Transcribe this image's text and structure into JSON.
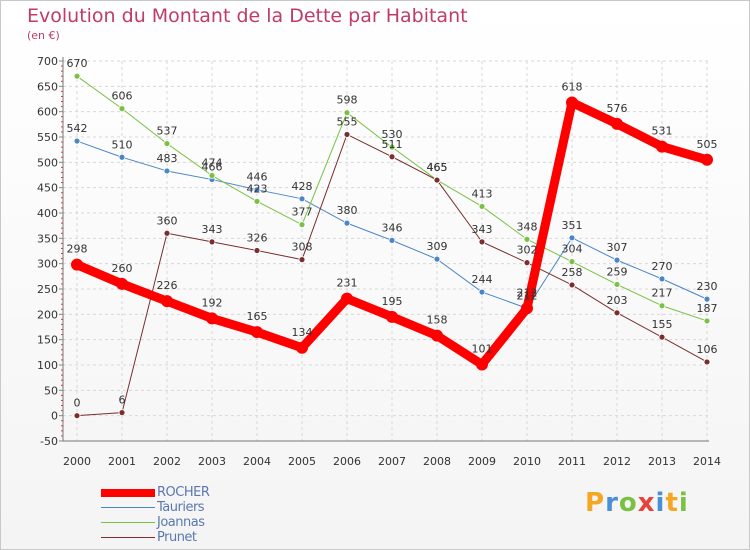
{
  "header": {
    "title": "Evolution du Montant de la Dette par Habitant",
    "subtitle": "(en €)"
  },
  "logo": {
    "letters": [
      "P",
      "r",
      "o",
      "x",
      "i",
      "t",
      "i"
    ],
    "colors": [
      "#f5a623",
      "#4a90d9",
      "#7ac143",
      "#e8403a",
      "#4a90d9",
      "#f5a623",
      "#7ac143"
    ]
  },
  "chart_data": {
    "type": "line",
    "title": "Evolution du Montant de la Dette par Habitant",
    "subtitle": "(en €)",
    "x": [
      "2000",
      "2001",
      "2002",
      "2003",
      "2004",
      "2005",
      "2006",
      "2007",
      "2008",
      "2009",
      "2010",
      "2011",
      "2012",
      "2013",
      "2014"
    ],
    "ylim": [
      -50,
      700
    ],
    "yticks": [
      -50,
      0,
      50,
      100,
      150,
      200,
      250,
      300,
      350,
      400,
      450,
      500,
      550,
      600,
      650,
      700
    ],
    "grid": true,
    "legend_position": "bottom-left",
    "series": [
      {
        "name": "Tauriers",
        "color": "#4a86c8",
        "width": 1,
        "values": [
          542,
          510,
          483,
          466,
          446,
          428,
          380,
          346,
          309,
          244,
          212,
          351,
          307,
          270,
          230
        ],
        "labels": [
          "542",
          "510",
          "483",
          "466",
          "446",
          "428",
          "380",
          "346",
          "309",
          "244",
          "212",
          "351",
          "307",
          "270",
          "230"
        ]
      },
      {
        "name": "Joannas",
        "color": "#7ac143",
        "width": 1,
        "values": [
          670,
          606,
          537,
          474,
          423,
          377,
          598,
          530,
          465,
          413,
          348,
          304,
          259,
          217,
          187
        ],
        "labels": [
          "670",
          "606",
          "537",
          "474",
          "423",
          "377",
          "598",
          "530",
          "465",
          "413",
          "348",
          "304",
          "259",
          "217",
          "187"
        ]
      },
      {
        "name": "Prunet",
        "color": "#7a2e2e",
        "width": 1,
        "values": [
          0,
          6,
          360,
          343,
          326,
          308,
          555,
          511,
          465,
          343,
          302,
          258,
          203,
          155,
          106
        ],
        "labels": [
          "0",
          "6",
          "360",
          "343",
          "326",
          "308",
          "555",
          "511",
          "465",
          "343",
          "302",
          "258",
          "203",
          "155",
          "106"
        ]
      },
      {
        "name": "ROCHER",
        "color": "#ff0000",
        "width": 9,
        "values": [
          298,
          260,
          226,
          192,
          165,
          134,
          231,
          195,
          158,
          101,
          212,
          618,
          576,
          531,
          505
        ],
        "labels": [
          "298",
          "260",
          "226",
          "192",
          "165",
          "134",
          "231",
          "195",
          "158",
          "101",
          "212",
          "618",
          "576",
          "531",
          "505"
        ]
      }
    ],
    "legend": [
      "ROCHER",
      "Tauriers",
      "Joannas",
      "Prunet"
    ]
  }
}
